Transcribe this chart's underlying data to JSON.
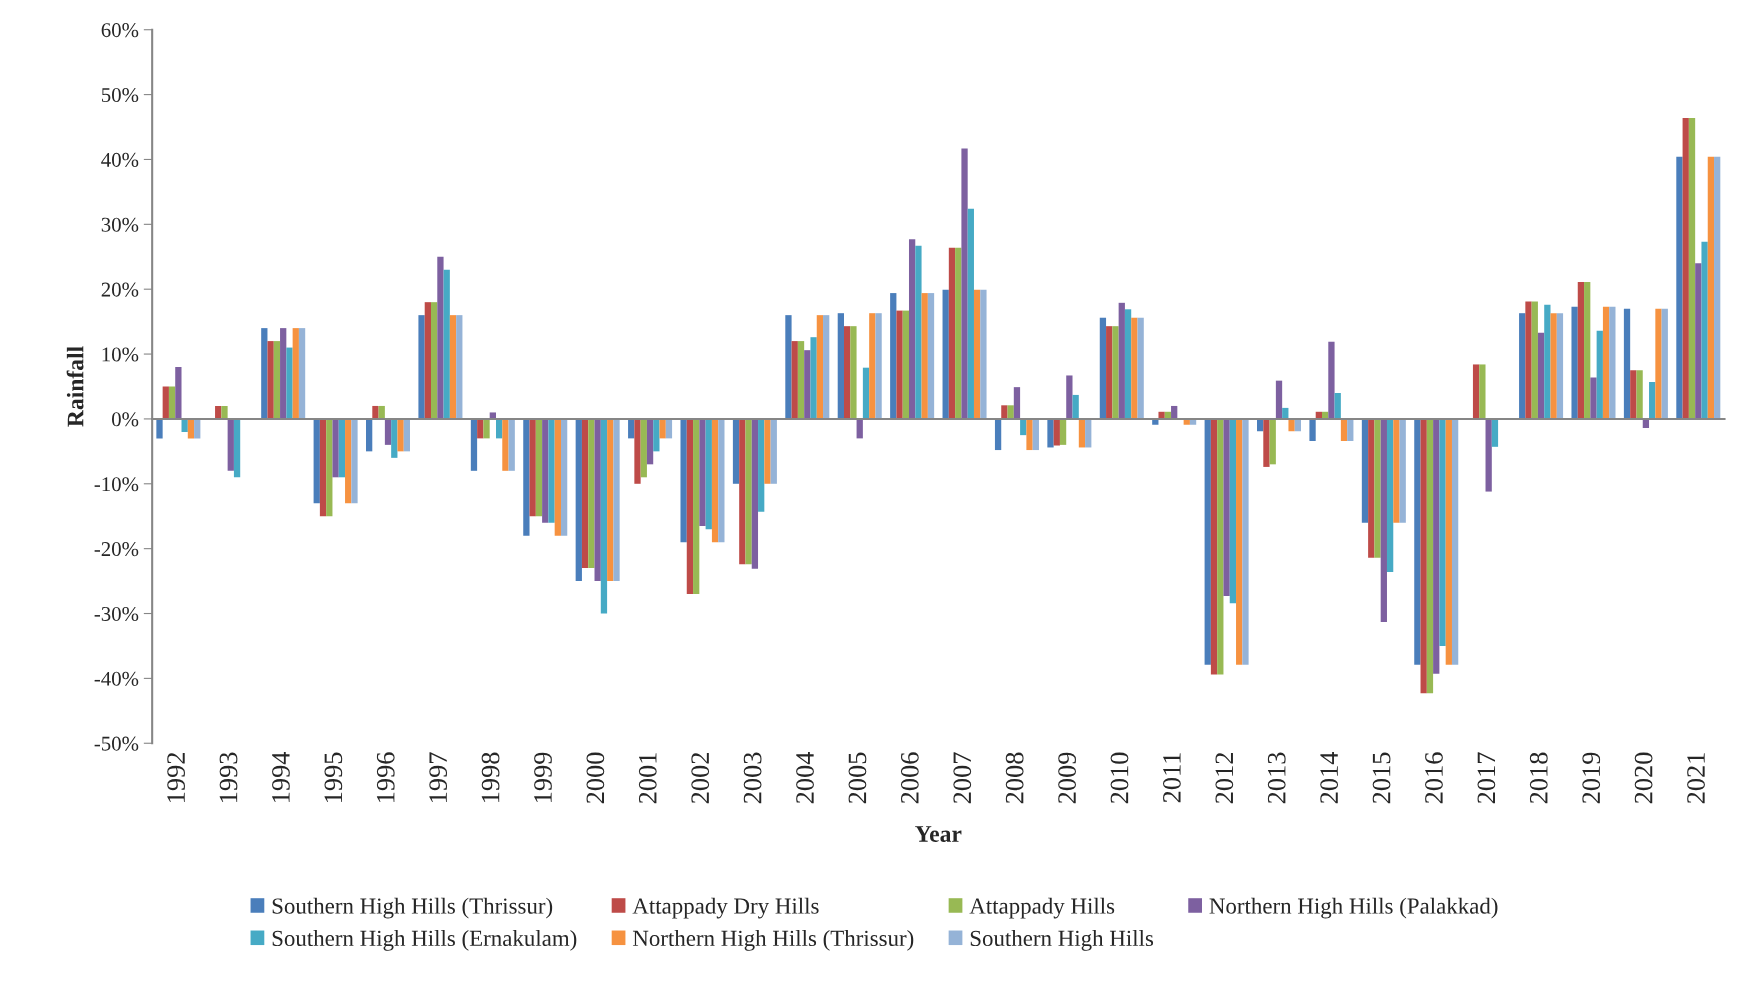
{
  "chart_data": {
    "type": "bar",
    "xlabel": "Year",
    "ylabel": "Rainfall",
    "categories": [
      "1992",
      "1993",
      "1994",
      "1995",
      "1996",
      "1997",
      "1998",
      "1999",
      "2000",
      "2001",
      "2002",
      "2003",
      "2004",
      "2005",
      "2006",
      "2007",
      "2008",
      "2009",
      "2010",
      "2011",
      "2012",
      "2013",
      "2014",
      "2015",
      "2016",
      "2017",
      "2018",
      "2019",
      "2020",
      "2021"
    ],
    "series": [
      {
        "name": "Southern High Hills (Thrissur)",
        "color": "#4a7ebb",
        "values": [
          -3,
          0,
          14,
          -13,
          -5,
          16,
          -8,
          -18,
          -25,
          -3,
          -19,
          -10,
          16,
          16.3,
          19.4,
          19.9,
          -4.8,
          -4.4,
          15.6,
          -0.9,
          -37.9,
          -1.9,
          -3.4,
          -16,
          -37.9,
          0,
          16.3,
          17.3,
          17,
          40.4
        ]
      },
      {
        "name": "Attappady Dry Hills",
        "color": "#be4b48",
        "values": [
          5,
          2,
          12,
          -15,
          2,
          18,
          -3,
          -15,
          -23,
          -10,
          -27,
          -22.4,
          12,
          14.3,
          16.7,
          26.4,
          2.1,
          -4.1,
          14.3,
          1.1,
          -39.4,
          -7.4,
          1.1,
          -21.4,
          -42.3,
          8.4,
          18.1,
          21.1,
          7.5,
          46.4
        ]
      },
      {
        "name": "Attappady Hills",
        "color": "#98b954",
        "values": [
          5,
          2,
          12,
          -15,
          2,
          18,
          -3,
          -15,
          -23,
          -9,
          -27,
          -22.4,
          12,
          14.3,
          16.7,
          26.4,
          2.1,
          -4,
          14.3,
          1.1,
          -39.4,
          -7,
          1.1,
          -21.4,
          -42.3,
          8.4,
          18.1,
          21.1,
          7.5,
          46.4
        ]
      },
      {
        "name": "Northern High Hills (Palakkad)",
        "color": "#7d60a0",
        "values": [
          8,
          -8,
          14,
          -9,
          -4,
          25,
          1,
          -16,
          -25,
          -7,
          -16.5,
          -23.1,
          10.6,
          -3,
          27.7,
          41.7,
          4.9,
          6.7,
          17.9,
          2,
          -27.3,
          5.9,
          11.9,
          -31.3,
          -39.3,
          -11.2,
          13.3,
          6.4,
          -1.4,
          24
        ]
      },
      {
        "name": "Southern High Hills (Ernakulam)",
        "color": "#46aac5",
        "values": [
          -2,
          -9,
          11,
          -9,
          -6,
          23,
          -3,
          -16,
          -30,
          -5,
          -17,
          -14.3,
          12.6,
          7.9,
          26.7,
          32.4,
          -2.5,
          3.7,
          16.9,
          0.1,
          -28.4,
          1.7,
          4,
          -23.6,
          -35,
          -4.3,
          17.6,
          13.6,
          5.7,
          27.3
        ]
      },
      {
        "name": "Northern High Hills (Thrissur)",
        "color": "#f69240",
        "values": [
          -3,
          0,
          14,
          -13,
          -5,
          16,
          -8,
          -18,
          -25,
          -3,
          -19,
          -10,
          16,
          16.3,
          19.4,
          19.9,
          -4.8,
          -4.4,
          15.6,
          -0.9,
          -37.9,
          -1.9,
          -3.4,
          -16,
          -37.9,
          0,
          16.3,
          17.3,
          17,
          40.4
        ]
      },
      {
        "name": "Southern High Hills",
        "color": "#95b3d7",
        "values": [
          -3,
          0,
          14,
          -13,
          -5,
          16,
          -8,
          -18,
          -25,
          -3,
          -19,
          -10,
          16,
          16.3,
          19.4,
          19.9,
          -4.8,
          -4.4,
          15.6,
          -0.9,
          -37.9,
          -1.9,
          -3.4,
          -16,
          -37.9,
          0,
          16.3,
          17.3,
          17,
          40.4
        ]
      }
    ],
    "ylim": [
      -50,
      60
    ],
    "yticks": [
      {
        "value": -50,
        "label": "-50%"
      },
      {
        "value": -40,
        "label": "-40%"
      },
      {
        "value": -30,
        "label": "-30%"
      },
      {
        "value": -20,
        "label": "-20%"
      },
      {
        "value": -10,
        "label": "-10%"
      },
      {
        "value": 0,
        "label": "0%"
      },
      {
        "value": 10,
        "label": "10%"
      },
      {
        "value": 20,
        "label": "20%"
      },
      {
        "value": 30,
        "label": "30%"
      },
      {
        "value": 40,
        "label": "40%"
      },
      {
        "value": 50,
        "label": "50%"
      },
      {
        "value": 60,
        "label": "60%"
      }
    ],
    "legend": "bottom"
  }
}
